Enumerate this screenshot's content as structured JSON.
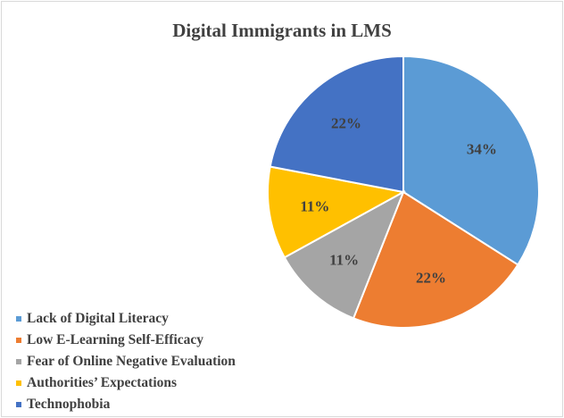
{
  "chart_data": {
    "type": "pie",
    "title": "Digital Immigrants in LMS",
    "legend_position": "bottom-left",
    "slices": [
      {
        "label": "Lack of Digital Literacy",
        "value": 34,
        "value_label": "34%",
        "color": "#5b9bd5"
      },
      {
        "label": "Low E-Learning Self-Efficacy",
        "value": 22,
        "value_label": "22%",
        "color": "#ed7d31"
      },
      {
        "label": "Fear of Online Negative Evaluation",
        "value": 11,
        "value_label": "11%",
        "color": "#a5a5a5"
      },
      {
        "label": "Authorities’ Expectations",
        "value": 11,
        "value_label": "11%",
        "color": "#ffc000"
      },
      {
        "label": "Technophobia",
        "value": 22,
        "value_label": "22%",
        "color": "#4472c4"
      }
    ]
  }
}
